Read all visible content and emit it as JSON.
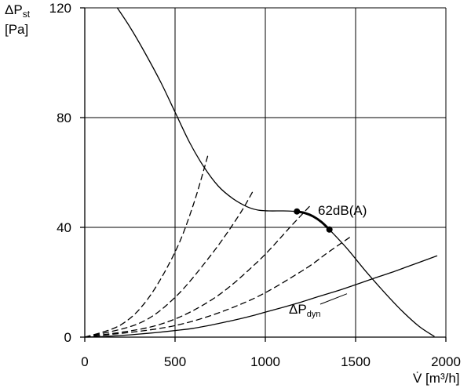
{
  "chart_data": {
    "type": "line",
    "xlim": [
      0,
      2000
    ],
    "ylim": [
      0,
      120
    ],
    "grid": true,
    "x_ticks": [
      {
        "value": 0,
        "label": "0"
      },
      {
        "value": 500,
        "label": "500"
      },
      {
        "value": 1000,
        "label": "1000"
      },
      {
        "value": 1500,
        "label": "1500"
      },
      {
        "value": 2000,
        "label": "2000"
      }
    ],
    "y_ticks": [
      {
        "value": 0,
        "label": "0"
      },
      {
        "value": 40,
        "label": "40"
      },
      {
        "value": 80,
        "label": "80"
      },
      {
        "value": 120,
        "label": "120"
      }
    ],
    "ylabel": {
      "main": "ΔP",
      "sub": "st",
      "unit": "[Pa]"
    },
    "xlabel": {
      "symbol": "V̇",
      "unit": " [m³/h]"
    },
    "series": [
      {
        "style": "solid",
        "points": [
          [
            180,
            120
          ],
          [
            250,
            113
          ],
          [
            330,
            104
          ],
          [
            420,
            93
          ],
          [
            500,
            82
          ],
          [
            580,
            71
          ],
          [
            660,
            62
          ],
          [
            740,
            55
          ],
          [
            820,
            50.5
          ],
          [
            900,
            47.5
          ],
          [
            960,
            46.3
          ],
          [
            1020,
            46
          ],
          [
            1100,
            46
          ],
          [
            1175,
            45.8
          ]
        ]
      },
      {
        "style": "bold",
        "points": [
          [
            1175,
            45.8
          ],
          [
            1220,
            45.2
          ],
          [
            1265,
            44
          ],
          [
            1310,
            42
          ],
          [
            1355,
            39.2
          ]
        ]
      },
      {
        "style": "solid",
        "points": [
          [
            1355,
            39.2
          ],
          [
            1450,
            32.5
          ],
          [
            1550,
            24.5
          ],
          [
            1650,
            17
          ],
          [
            1750,
            10
          ],
          [
            1850,
            4
          ],
          [
            1935,
            0.3
          ]
        ]
      },
      {
        "name": "ΔP_dyn",
        "style": "solid",
        "points": [
          [
            0,
            0
          ],
          [
            100,
            0.2
          ],
          [
            200,
            0.6
          ],
          [
            300,
            1.1
          ],
          [
            400,
            1.7
          ],
          [
            500,
            2.4
          ],
          [
            600,
            3.2
          ],
          [
            700,
            4.4
          ],
          [
            800,
            5.8
          ],
          [
            900,
            7.3
          ],
          [
            1000,
            9.1
          ],
          [
            1100,
            10.9
          ],
          [
            1200,
            12.8
          ],
          [
            1300,
            14.9
          ],
          [
            1400,
            16.9
          ],
          [
            1500,
            19.1
          ],
          [
            1600,
            21.4
          ],
          [
            1700,
            23.6
          ],
          [
            1800,
            26.0
          ],
          [
            1900,
            28.4
          ],
          [
            1950,
            29.6
          ]
        ]
      },
      {
        "style": "dashed",
        "points": [
          [
            0,
            0
          ],
          [
            200,
            4.5
          ],
          [
            350,
            14
          ],
          [
            500,
            31
          ],
          [
            600,
            48
          ],
          [
            685,
            67
          ]
        ]
      },
      {
        "style": "dashed",
        "points": [
          [
            0,
            0
          ],
          [
            300,
            5
          ],
          [
            500,
            14.5
          ],
          [
            700,
            30
          ],
          [
            850,
            44
          ],
          [
            930,
            53
          ]
        ]
      },
      {
        "style": "dashed",
        "points": [
          [
            0,
            0
          ],
          [
            400,
            4.3
          ],
          [
            700,
            13.5
          ],
          [
            950,
            27
          ],
          [
            1150,
            41
          ],
          [
            1250,
            48
          ]
        ]
      },
      {
        "style": "dashed",
        "points": [
          [
            0,
            0
          ],
          [
            500,
            4.2
          ],
          [
            900,
            13
          ],
          [
            1200,
            24
          ],
          [
            1350,
            31
          ],
          [
            1470,
            36.5
          ]
        ]
      }
    ],
    "operating_points": [
      [
        1175,
        45.8
      ],
      [
        1355,
        39.2
      ]
    ],
    "annotations": [
      {
        "text": "62dB(A)"
      },
      {
        "text": "ΔP",
        "sub": "dyn"
      }
    ]
  }
}
